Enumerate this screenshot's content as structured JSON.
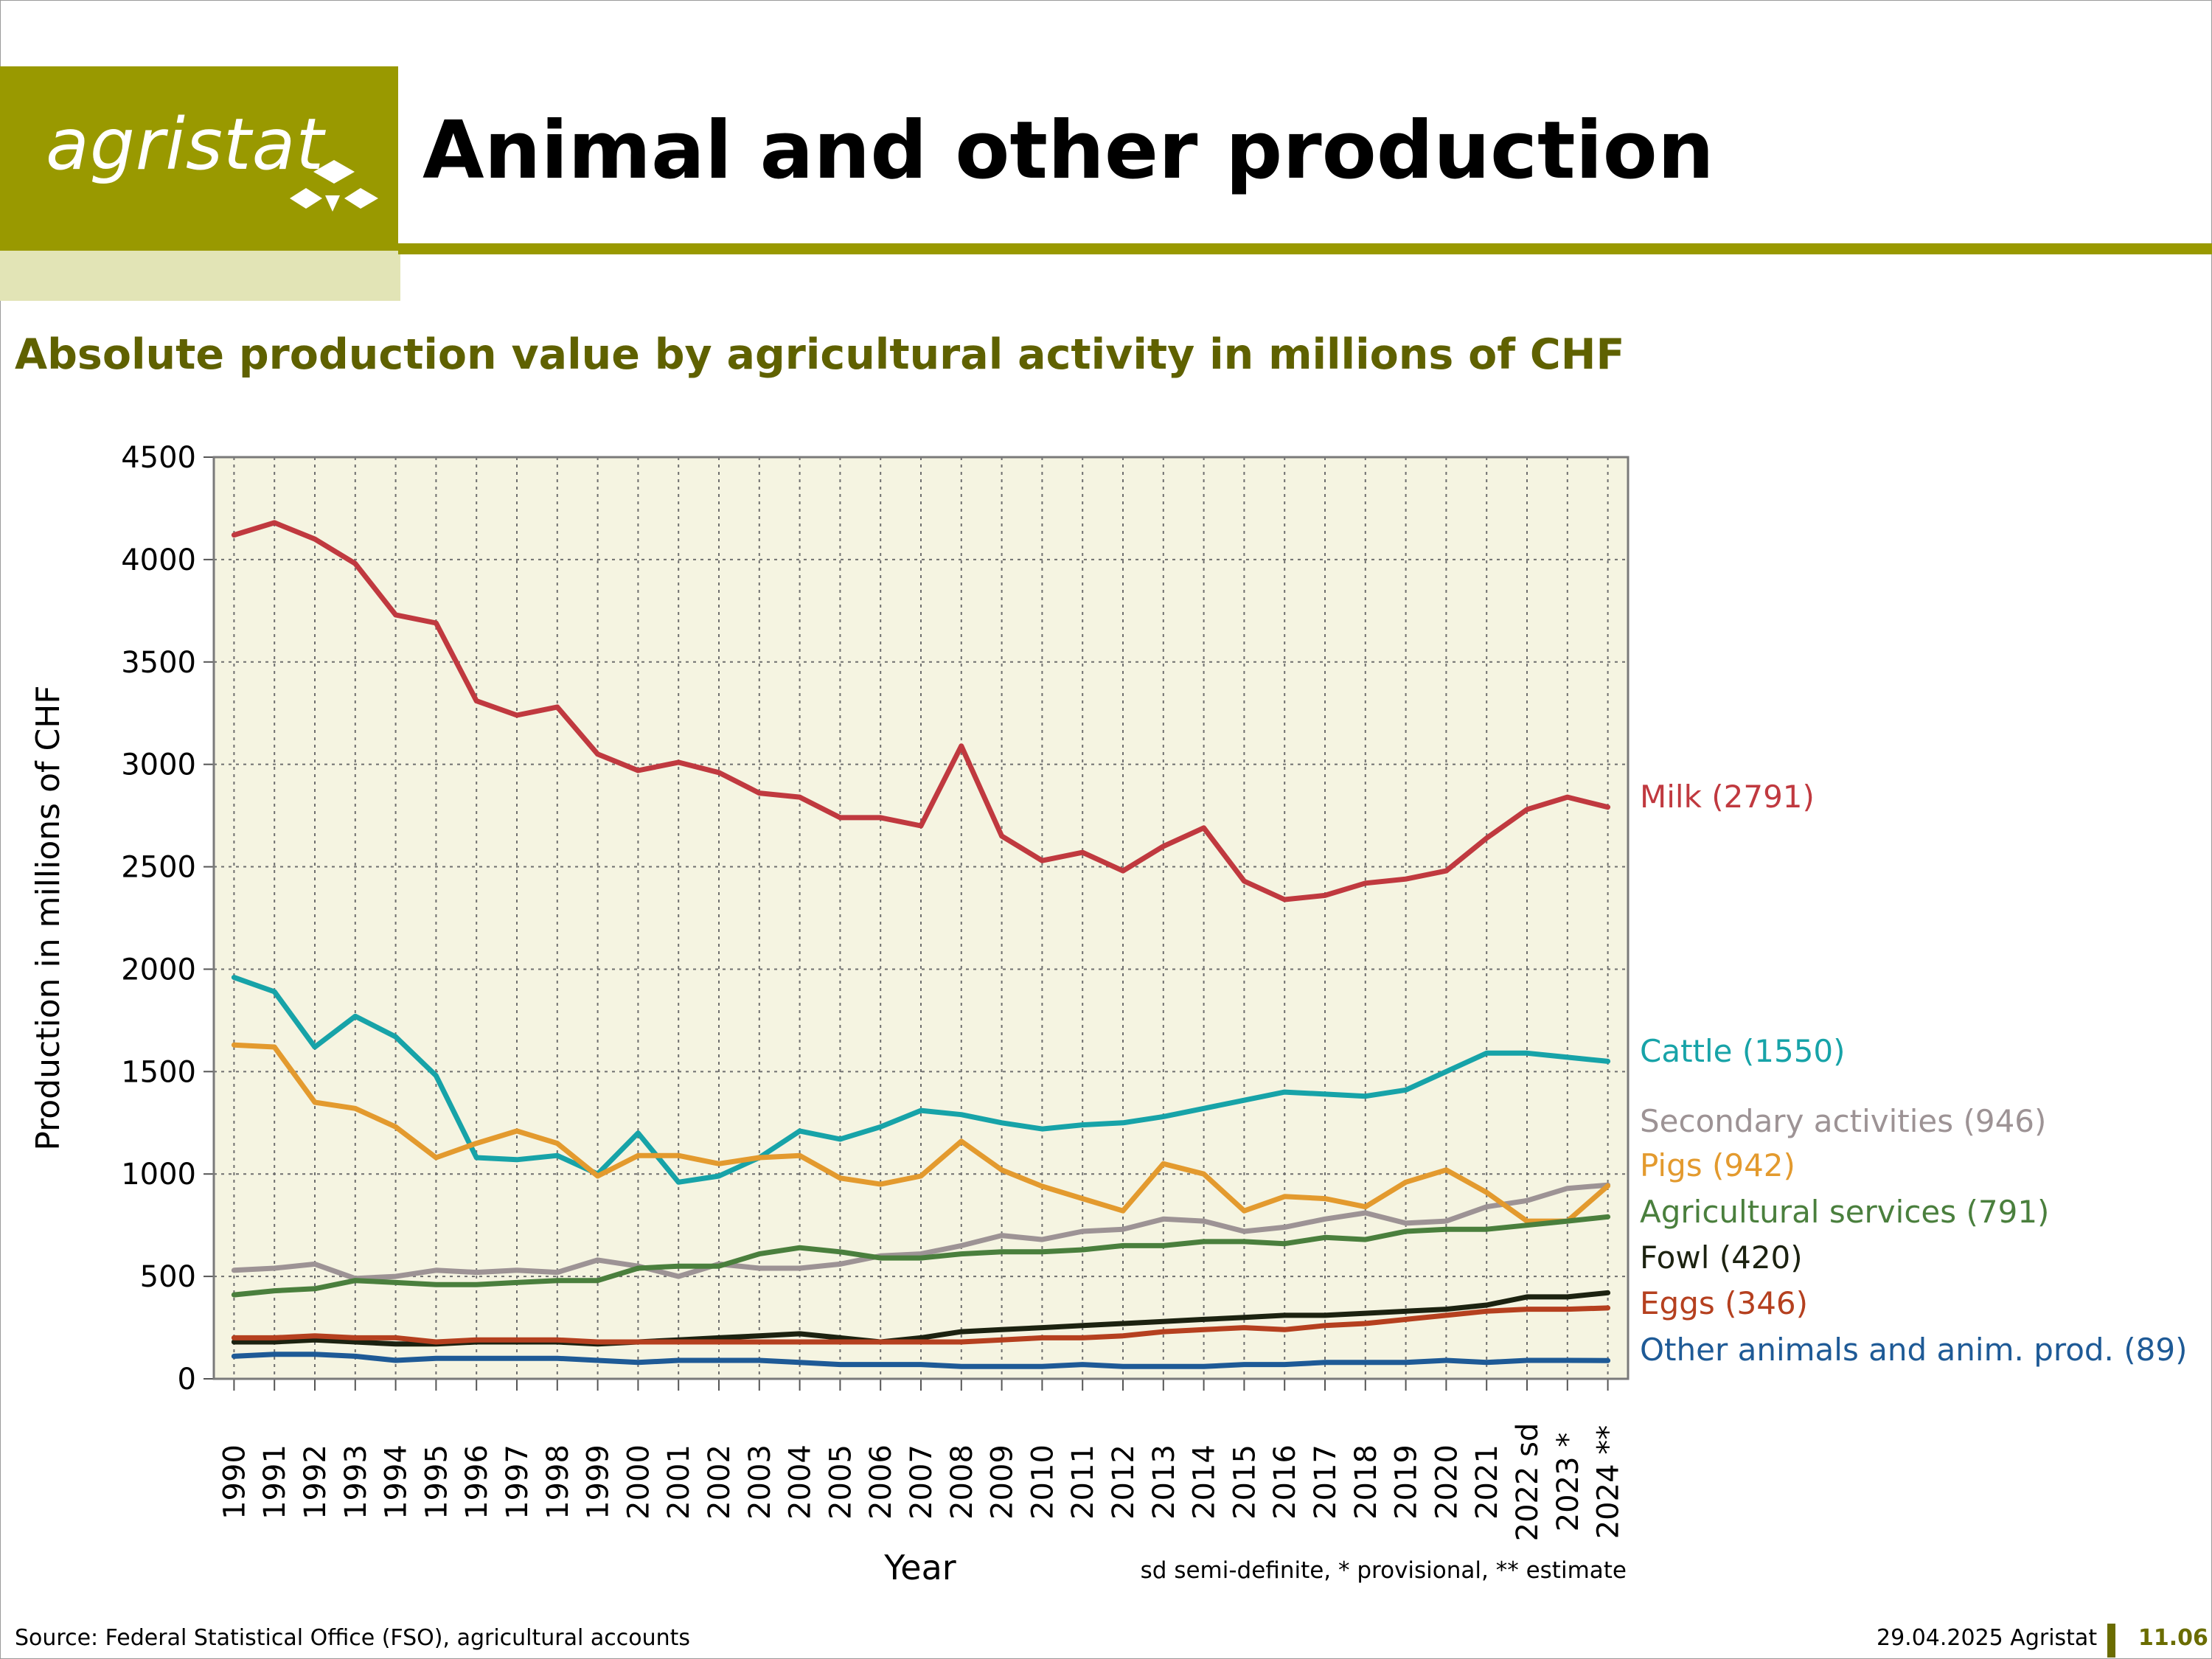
{
  "header": {
    "logo_text": "agristat",
    "title": "Animal and other production",
    "subtitle": "Absolute production value by agricultural activity in millions of CHF"
  },
  "footer": {
    "source": "Source: Federal Statistical Office (FSO), agricultural accounts",
    "date": "29.04.2025 Agristat",
    "page": "11.06"
  },
  "colors": {
    "brand": "#999900",
    "brand_light": "#e2e4b6",
    "plot_bg": "#f5f4e1"
  },
  "chart_data": {
    "type": "line",
    "title": "",
    "xlabel": "Year",
    "ylabel": "Production in millions of CHF",
    "note": "sd semi-definite, * provisional, ** estimate",
    "ylim": [
      0,
      4500
    ],
    "yticks": [
      0,
      500,
      1000,
      1500,
      2000,
      2500,
      3000,
      3500,
      4000,
      4500
    ],
    "grid": true,
    "legend": "labels at right end of lines",
    "categories": [
      "1990",
      "1991",
      "1992",
      "1993",
      "1994",
      "1995",
      "1996",
      "1997",
      "1998",
      "1999",
      "2000",
      "2001",
      "2002",
      "2003",
      "2004",
      "2005",
      "2006",
      "2007",
      "2008",
      "2009",
      "2010",
      "2011",
      "2012",
      "2013",
      "2014",
      "2015",
      "2016",
      "2017",
      "2018",
      "2019",
      "2020",
      "2021",
      "2022 sd",
      "2023 *",
      "2024 **"
    ],
    "series": [
      {
        "name": "Milk",
        "label": "Milk (2791)",
        "color": "#c0393f",
        "values": [
          4120,
          4180,
          4100,
          3980,
          3730,
          3690,
          3310,
          3240,
          3280,
          3050,
          2970,
          3010,
          2960,
          2860,
          2840,
          2740,
          2740,
          2700,
          3090,
          2650,
          2530,
          2570,
          2480,
          2600,
          2690,
          2430,
          2340,
          2360,
          2420,
          2440,
          2480,
          2640,
          2780,
          2840,
          2791
        ]
      },
      {
        "name": "Cattle",
        "label": "Cattle (1550)",
        "color": "#17a3a8",
        "values": [
          1960,
          1890,
          1620,
          1770,
          1670,
          1480,
          1080,
          1070,
          1090,
          1000,
          1200,
          960,
          990,
          1080,
          1210,
          1170,
          1230,
          1310,
          1290,
          1250,
          1220,
          1240,
          1250,
          1280,
          1320,
          1360,
          1400,
          1390,
          1380,
          1410,
          1500,
          1590,
          1590,
          1570,
          1550
        ]
      },
      {
        "name": "Secondary activities",
        "label": "Secondary activities (946)",
        "color": "#9d9395",
        "values": [
          530,
          540,
          560,
          490,
          500,
          530,
          520,
          530,
          520,
          580,
          550,
          500,
          560,
          540,
          540,
          560,
          600,
          610,
          650,
          700,
          680,
          720,
          730,
          780,
          770,
          720,
          740,
          780,
          810,
          760,
          770,
          840,
          870,
          930,
          946
        ]
      },
      {
        "name": "Pigs",
        "label": "Pigs (942)",
        "color": "#e39a2e",
        "values": [
          1630,
          1620,
          1350,
          1320,
          1230,
          1080,
          1150,
          1210,
          1150,
          990,
          1090,
          1090,
          1050,
          1080,
          1090,
          980,
          950,
          990,
          1160,
          1020,
          940,
          880,
          820,
          1050,
          1000,
          820,
          890,
          880,
          840,
          960,
          1020,
          910,
          770,
          770,
          942
        ]
      },
      {
        "name": "Agricultural services",
        "label": "Agricultural services (791)",
        "color": "#4a7f3d",
        "values": [
          410,
          430,
          440,
          480,
          470,
          460,
          460,
          470,
          480,
          480,
          540,
          550,
          550,
          610,
          640,
          620,
          590,
          590,
          610,
          620,
          620,
          630,
          650,
          650,
          670,
          670,
          660,
          690,
          680,
          720,
          730,
          730,
          750,
          770,
          791
        ]
      },
      {
        "name": "Fowl",
        "label": "Fowl (420)",
        "color": "#1c2210",
        "values": [
          180,
          180,
          190,
          180,
          170,
          170,
          180,
          180,
          180,
          170,
          180,
          190,
          200,
          210,
          220,
          200,
          180,
          200,
          230,
          240,
          250,
          260,
          270,
          280,
          290,
          300,
          310,
          310,
          320,
          330,
          340,
          360,
          400,
          400,
          420
        ]
      },
      {
        "name": "Eggs",
        "label": "Eggs (346)",
        "color": "#b5401f",
        "values": [
          200,
          200,
          210,
          200,
          200,
          180,
          190,
          190,
          190,
          180,
          180,
          180,
          180,
          180,
          180,
          180,
          180,
          180,
          180,
          190,
          200,
          200,
          210,
          230,
          240,
          250,
          240,
          260,
          270,
          290,
          310,
          330,
          340,
          340,
          346
        ]
      },
      {
        "name": "Other animals and anim. prod.",
        "label": "Other animals and anim. prod. (89)",
        "color": "#1e5a96",
        "values": [
          110,
          120,
          120,
          110,
          90,
          100,
          100,
          100,
          100,
          90,
          80,
          90,
          90,
          90,
          80,
          70,
          70,
          70,
          60,
          60,
          60,
          70,
          60,
          60,
          60,
          70,
          70,
          80,
          80,
          80,
          90,
          80,
          90,
          90,
          89
        ]
      }
    ]
  }
}
